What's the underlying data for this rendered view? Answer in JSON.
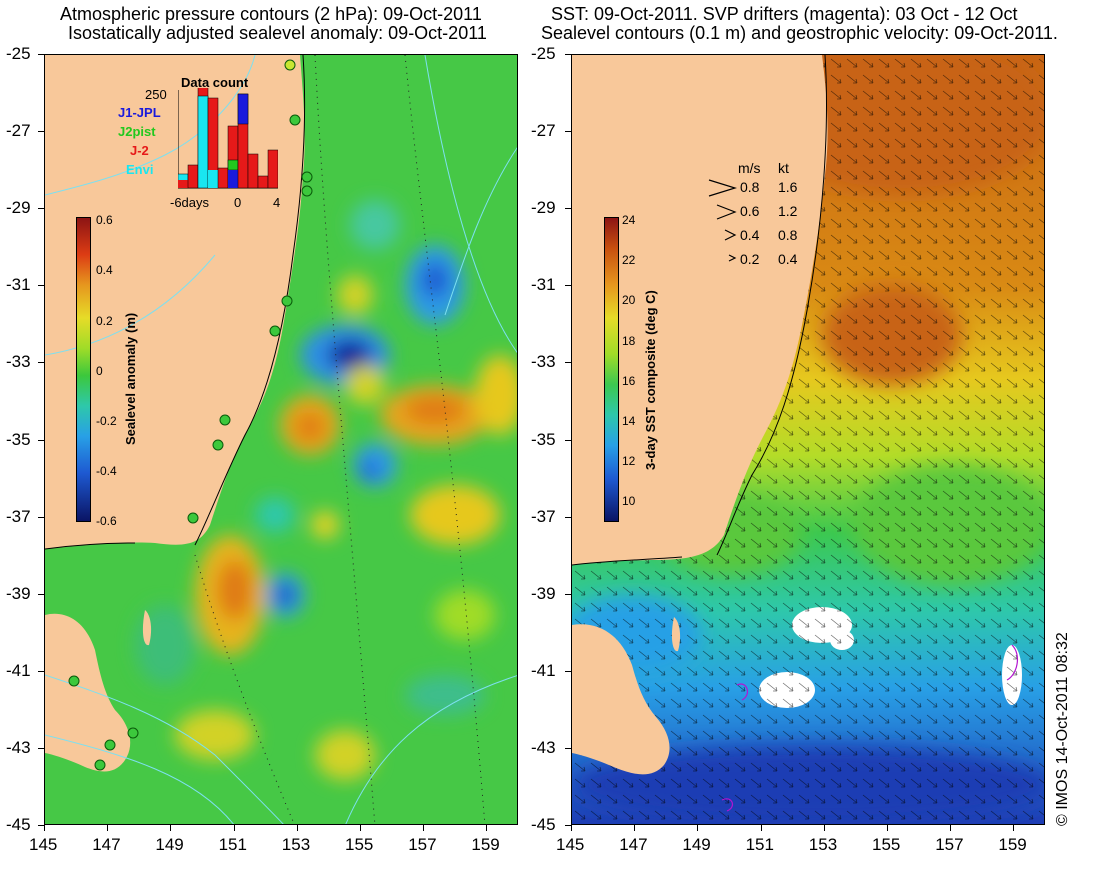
{
  "left_panel": {
    "title_line1": "Atmospheric pressure contours (2 hPa): 09-Oct-2011",
    "title_line2": "Isostatically adjusted sealevel anomaly: 09-Oct-2011",
    "colorbar_title": "Sealevel anomaly (m)",
    "colorbar_ticks": [
      "0.6",
      "0.4",
      "0.2",
      "0",
      "-0.2",
      "-0.4",
      "-0.6"
    ],
    "inset": {
      "title": "Data count",
      "max_label": "250",
      "x_ticks": [
        "-6days",
        "0",
        "4"
      ],
      "legend": [
        {
          "label": "J1-JPL",
          "color": "#1a1adc"
        },
        {
          "label": "J2pist",
          "color": "#22c81e"
        },
        {
          "label": "J-2",
          "color": "#e61919"
        },
        {
          "label": "Envi",
          "color": "#19e6f0"
        }
      ]
    }
  },
  "right_panel": {
    "title_line1": "SST: 09-Oct-2011. SVP drifters (magenta): 03 Oct - 12 Oct",
    "title_line2": "Sealevel contours (0.1 m) and geostrophic velocity: 09-Oct-2011.",
    "colorbar_title": "3-day SST composite (deg C)",
    "colorbar_ticks": [
      "24",
      "22",
      "20",
      "18",
      "16",
      "14",
      "12",
      "10"
    ],
    "velocity_legend": {
      "header_ms": "m/s",
      "header_kt": "kt",
      "rows": [
        {
          "ms": "0.8",
          "kt": "1.6"
        },
        {
          "ms": "0.6",
          "kt": "1.2"
        },
        {
          "ms": "0.4",
          "kt": "0.8"
        },
        {
          "ms": "0.2",
          "kt": "0.4"
        }
      ]
    },
    "credit": "© IMOS 14-Oct-2011 08:32"
  },
  "y_axis_labels": [
    "-25",
    "-27",
    "-29",
    "-31",
    "-33",
    "-35",
    "-37",
    "-39",
    "-41",
    "-43",
    "-45"
  ],
  "x_axis_labels": [
    "145",
    "147",
    "149",
    "151",
    "153",
    "155",
    "157",
    "159"
  ],
  "colors": {
    "land": "#f8c89a",
    "ssh_green": "#3cc83c",
    "sst_orange": "#d97a12",
    "sst_blue": "#1e5ad2"
  }
}
